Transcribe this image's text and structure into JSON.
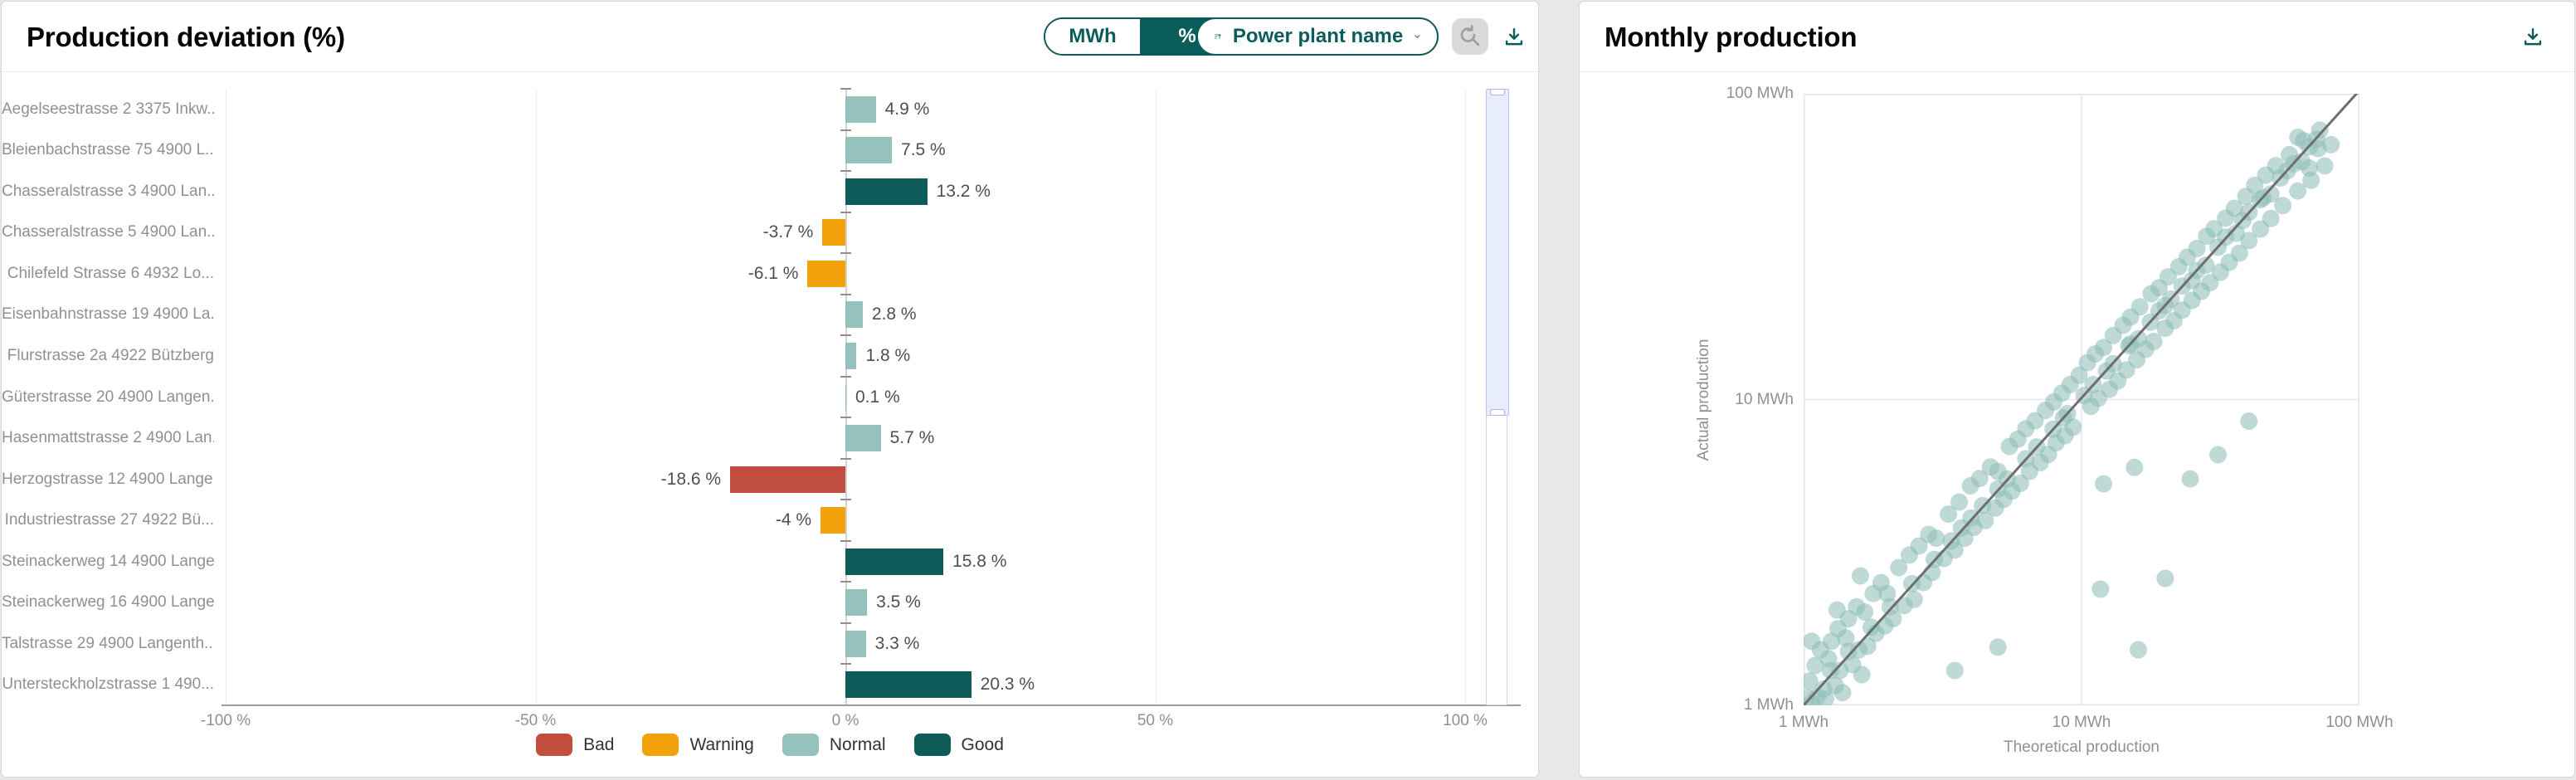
{
  "colors": {
    "accent_teal": "#0B5D5B",
    "status": {
      "Bad": "#C14E3F",
      "Warning": "#F2A30B",
      "Normal": "#95C2BD",
      "Good": "#0D5C59"
    },
    "scatter_point": "#8FBDB8",
    "diagonal_line": "#6E6E6E",
    "gridline": "#E4E8F0",
    "disabled_button_bg": "#D9D9D9"
  },
  "left_panel": {
    "title": "Production deviation (%)",
    "unit_toggle": {
      "options": [
        "MWh",
        "%"
      ],
      "selected": "%"
    },
    "sort_dropdown": {
      "label": "Power plant name"
    },
    "reset_zoom_disabled": true
  },
  "right_panel": {
    "title": "Monthly production"
  },
  "chart_data": [
    {
      "type": "bar",
      "orientation": "horizontal",
      "title": "Production deviation (%)",
      "categories": [
        "Aegelseestrasse 2 3375 Inkw...",
        "Bleienbachstrasse 75 4900 L...",
        "Chasseralstrasse 3 4900 Lan...",
        "Chasseralstrasse 5 4900 Lan...",
        "Chilefeld Strasse 6 4932 Lo...",
        "Eisenbahnstrasse 19 4900 La...",
        "Flurstrasse 2a 4922 Bützberg",
        "Güterstrasse 20 4900 Langen...",
        "Hasenmattstrasse 2 4900 Lan...",
        "Herzogstrasse 12 4900 Lange...",
        "Industriestrasse 27 4922 Bü...",
        "Steinackerweg 14 4900 Lange...",
        "Steinackerweg 16 4900 Lange...",
        "Talstrasse 29 4900 Langenth...",
        "Untersteckholzstrasse 1 490..."
      ],
      "values": [
        4.9,
        7.5,
        13.2,
        -3.7,
        -6.1,
        2.8,
        1.8,
        0.1,
        5.7,
        -18.6,
        -4,
        15.8,
        3.5,
        3.3,
        20.3
      ],
      "value_labels": [
        "4.9 %",
        "7.5 %",
        "13.2 %",
        "-3.7 %",
        "-6.1 %",
        "2.8 %",
        "1.8 %",
        "0.1 %",
        "5.7 %",
        "-18.6 %",
        "-4 %",
        "15.8 %",
        "3.5 %",
        "3.3 %",
        "20.3 %"
      ],
      "statuses": [
        "Normal",
        "Normal",
        "Good",
        "Warning",
        "Warning",
        "Normal",
        "Normal",
        "Normal",
        "Normal",
        "Bad",
        "Warning",
        "Good",
        "Normal",
        "Normal",
        "Good"
      ],
      "xlim": [
        -100,
        100
      ],
      "xticks": {
        "values": [
          -100,
          -50,
          0,
          50,
          100
        ],
        "labels": [
          "-100 %",
          "-50 %",
          "0 %",
          "50 %",
          "100 %"
        ]
      },
      "grid": true,
      "legend": [
        {
          "label": "Bad",
          "status": "Bad"
        },
        {
          "label": "Warning",
          "status": "Warning"
        },
        {
          "label": "Normal",
          "status": "Normal"
        },
        {
          "label": "Good",
          "status": "Good"
        }
      ],
      "legend_position": "bottom-center"
    },
    {
      "type": "scatter",
      "title": "Monthly production",
      "xlabel": "Theoretical production",
      "ylabel": "Actual production",
      "xscale": "log",
      "yscale": "log",
      "xlim": [
        1,
        100
      ],
      "ylim": [
        1,
        100
      ],
      "xticks": {
        "values": [
          1,
          10,
          100
        ],
        "labels": [
          "1 MWh",
          "10 MWh",
          "100 MWh"
        ]
      },
      "yticks": {
        "values": [
          1,
          10,
          100
        ],
        "labels": [
          "1 MWh",
          "10 MWh",
          "100 MWh"
        ]
      },
      "reference_line": {
        "from": [
          1,
          1
        ],
        "to": [
          100,
          100
        ],
        "meaning": "actual = theoretical"
      },
      "grid": true,
      "points": [
        [
          1.03,
          1.06
        ],
        [
          1.05,
          1.2
        ],
        [
          1.07,
          1.02
        ],
        [
          1.1,
          1.35
        ],
        [
          1.12,
          1.07
        ],
        [
          1.15,
          1.52
        ],
        [
          1.18,
          1.13
        ],
        [
          1.2,
          1.05
        ],
        [
          1.23,
          1.42
        ],
        [
          1.26,
          1.62
        ],
        [
          1.3,
          1.16
        ],
        [
          1.33,
          1.78
        ],
        [
          1.35,
          1.3
        ],
        [
          1.38,
          1.1
        ],
        [
          1.42,
          1.66
        ],
        [
          1.45,
          1.92
        ],
        [
          1.5,
          1.36
        ],
        [
          1.55,
          2.1
        ],
        [
          1.58,
          1.52
        ],
        [
          1.62,
          1.26
        ],
        [
          1.66,
          2.02
        ],
        [
          1.7,
          1.56
        ],
        [
          1.78,
          2.32
        ],
        [
          1.82,
          1.72
        ],
        [
          1.9,
          2.52
        ],
        [
          1.96,
          1.82
        ],
        [
          2.0,
          2.32
        ],
        [
          2.1,
          1.92
        ],
        [
          2.2,
          2.82
        ],
        [
          2.3,
          2.12
        ],
        [
          2.4,
          3.1
        ],
        [
          2.5,
          2.22
        ],
        [
          2.6,
          3.32
        ],
        [
          2.7,
          2.52
        ],
        [
          2.82,
          3.62
        ],
        [
          2.9,
          2.72
        ],
        [
          3.0,
          3.52
        ],
        [
          1.07,
          1.62
        ],
        [
          1.32,
          2.05
        ],
        [
          1.6,
          2.65
        ],
        [
          3.2,
          3.02
        ],
        [
          3.32,
          4.22
        ],
        [
          3.5,
          3.22
        ],
        [
          3.63,
          4.62
        ],
        [
          3.8,
          3.52
        ],
        [
          3.98,
          5.22
        ],
        [
          4.1,
          3.82
        ],
        [
          4.3,
          5.52
        ],
        [
          4.5,
          4.02
        ],
        [
          4.7,
          6.02
        ],
        [
          4.9,
          4.42
        ],
        [
          5.0,
          5.82
        ],
        [
          5.25,
          4.72
        ],
        [
          5.5,
          7.02
        ],
        [
          5.62,
          5.02
        ],
        [
          5.9,
          7.42
        ],
        [
          6.02,
          5.32
        ],
        [
          6.3,
          8.02
        ],
        [
          6.5,
          5.82
        ],
        [
          6.8,
          8.52
        ],
        [
          7.1,
          6.22
        ],
        [
          7.42,
          9.22
        ],
        [
          7.6,
          6.62
        ],
        [
          7.94,
          9.82
        ],
        [
          8.1,
          7.22
        ],
        [
          8.5,
          10.5
        ],
        [
          8.72,
          7.62
        ],
        [
          9.1,
          11.2
        ],
        [
          9.32,
          8.12
        ],
        [
          9.8,
          12.0
        ],
        [
          4.0,
          4.1
        ],
        [
          5.0,
          5.1
        ],
        [
          6.3,
          6.4
        ],
        [
          7.9,
          8.0
        ],
        [
          8.9,
          9.0
        ],
        [
          3.4,
          3.45
        ],
        [
          10.5,
          13.2
        ],
        [
          10.8,
          9.5
        ],
        [
          11.2,
          14.1
        ],
        [
          11.5,
          10.1
        ],
        [
          12.0,
          14.8
        ],
        [
          12.6,
          10.8
        ],
        [
          13.0,
          16.2
        ],
        [
          13.5,
          11.5
        ],
        [
          14.1,
          17.5
        ],
        [
          14.5,
          12.5
        ],
        [
          15.0,
          18.6
        ],
        [
          15.8,
          13.5
        ],
        [
          16.2,
          20.1
        ],
        [
          17.0,
          14.6
        ],
        [
          17.8,
          22.2
        ],
        [
          18.2,
          15.5
        ],
        [
          19.0,
          23.2
        ],
        [
          20.0,
          17.1
        ],
        [
          20.5,
          25.2
        ],
        [
          21.5,
          18.1
        ],
        [
          22.4,
          27.2
        ],
        [
          23.0,
          19.6
        ],
        [
          24.0,
          29.2
        ],
        [
          25.0,
          21.1
        ],
        [
          26.0,
          31.2
        ],
        [
          27.0,
          22.6
        ],
        [
          28.2,
          34.2
        ],
        [
          29.0,
          24.1
        ],
        [
          30.0,
          36.2
        ],
        [
          31.6,
          26.1
        ],
        [
          33.0,
          39.2
        ],
        [
          34.0,
          28.1
        ],
        [
          35.5,
          42.2
        ],
        [
          37.0,
          30.1
        ],
        [
          39.0,
          46.2
        ],
        [
          40.0,
          33.1
        ],
        [
          42.0,
          50.2
        ],
        [
          44.0,
          36.1
        ],
        [
          46.0,
          54.2
        ],
        [
          48.0,
          39.1
        ],
        [
          50.0,
          58.2
        ],
        [
          53.0,
          43.1
        ],
        [
          56.0,
          63.2
        ],
        [
          60.0,
          48.1
        ],
        [
          63.0,
          70.2
        ],
        [
          67.0,
          52.1
        ],
        [
          71.0,
          66.2
        ],
        [
          60.0,
          72.1
        ],
        [
          66.0,
          57.2
        ],
        [
          75.0,
          58.1
        ],
        [
          79.0,
          68.2
        ],
        [
          72.0,
          76.0
        ],
        [
          11.0,
          11.2
        ],
        [
          13.0,
          13.1
        ],
        [
          16.0,
          15.8
        ],
        [
          19.0,
          19.5
        ],
        [
          23.0,
          23.5
        ],
        [
          28.0,
          27.5
        ],
        [
          33.0,
          34.0
        ],
        [
          40.0,
          41.0
        ],
        [
          48.0,
          47.0
        ],
        [
          58.0,
          59.0
        ],
        [
          70.0,
          71.0
        ],
        [
          25.0,
          24.5
        ],
        [
          20.0,
          20.3
        ],
        [
          15.0,
          15.2
        ],
        [
          36.0,
          35.0
        ],
        [
          44.0,
          45.0
        ],
        [
          52.0,
          53.0
        ],
        [
          62.0,
          60.0
        ],
        [
          6.9,
          7.0
        ],
        [
          5.4,
          5.5
        ],
        [
          4.4,
          4.5
        ],
        [
          3.7,
          3.8
        ],
        [
          2.95,
          3.0
        ],
        [
          2.45,
          2.5
        ],
        [
          2.05,
          2.1
        ],
        [
          1.75,
          1.8
        ],
        [
          1.45,
          1.5
        ],
        [
          1.25,
          1.3
        ],
        [
          10.2,
          10.3
        ],
        [
          12.3,
          12.4
        ],
        [
          14.8,
          15.0
        ],
        [
          17.7,
          17.9
        ],
        [
          21.0,
          21.3
        ],
        [
          26.0,
          26.4
        ],
        [
          31.0,
          31.5
        ],
        [
          38.0,
          38.5
        ],
        [
          45.0,
          45.7
        ],
        [
          55.0,
          56.0
        ],
        [
          66.0,
          67.0
        ],
        [
          8.6,
          8.7
        ],
        [
          16.0,
          1.52
        ],
        [
          11.7,
          2.4
        ],
        [
          20.0,
          2.6
        ],
        [
          31.0,
          6.6
        ],
        [
          24.6,
          5.5
        ],
        [
          15.5,
          6.0
        ],
        [
          12.0,
          5.3
        ],
        [
          40.0,
          8.5
        ],
        [
          5.0,
          1.55
        ],
        [
          3.5,
          1.3
        ]
      ]
    }
  ]
}
